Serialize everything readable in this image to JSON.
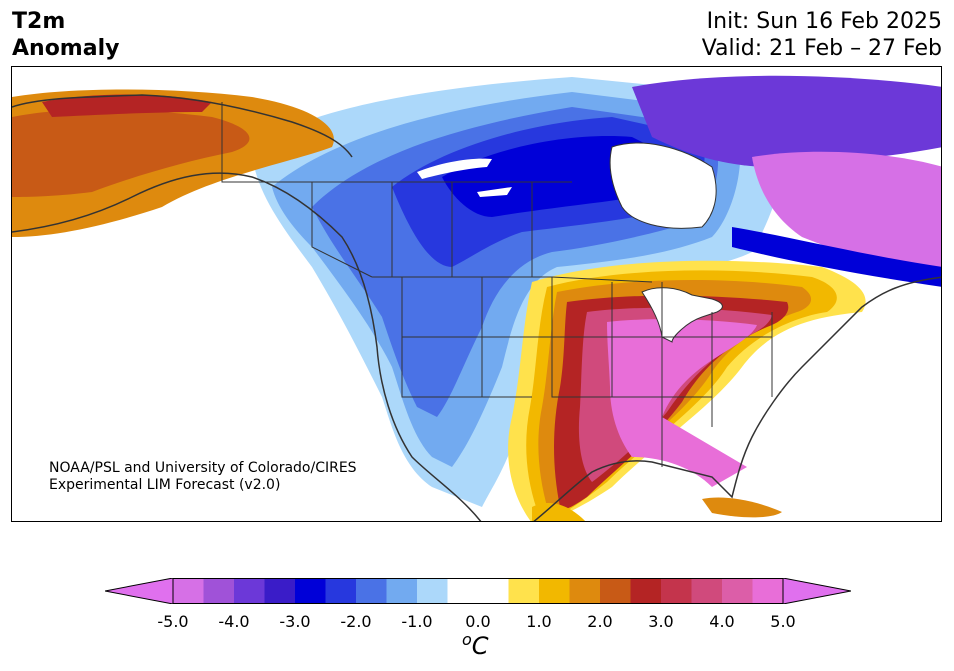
{
  "header": {
    "title_line1": "T2m",
    "title_line2": "Anomaly",
    "init": "Init: Sun 16 Feb 2025",
    "valid": "Valid: 21 Feb – 27 Feb"
  },
  "credit": {
    "line1": "NOAA/PSL and University of Colorado/CIRES",
    "line2": "Experimental LIM Forecast (v2.0)"
  },
  "colorbar": {
    "ticks": [
      "-5.0",
      "-4.0",
      "-3.0",
      "-2.0",
      "-1.0",
      "0.0",
      "1.0",
      "2.0",
      "3.0",
      "4.0",
      "5.0"
    ],
    "unit_prefix": "o",
    "unit": "C",
    "colors": [
      "#d670e6",
      "#a052d8",
      "#6c38d8",
      "#3a1cc8",
      "#0000d8",
      "#2738de",
      "#4a72e6",
      "#72aaf0",
      "#acd8fa",
      "#ffffff",
      "#ffffff",
      "#ffe24c",
      "#f2b800",
      "#de8a0e",
      "#c85a16",
      "#b42424",
      "#c4344c",
      "#d04a7c",
      "#dc5ea8",
      "#e86ed8"
    ],
    "under_color": "#e070ee",
    "over_color": "#e070ee"
  }
}
